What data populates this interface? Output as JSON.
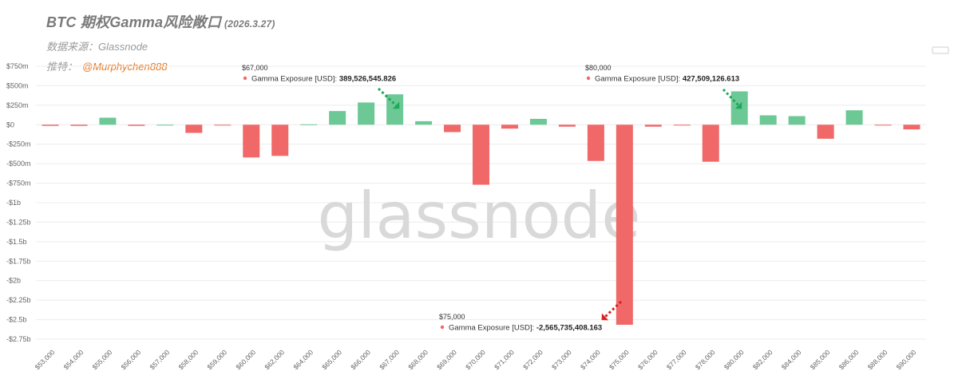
{
  "header": {
    "title": "BTC 期权Gamma风险敞口",
    "date": "(2026.3.27)",
    "source": "数据来源：Glassnode",
    "author_label": "推特：",
    "author_handle": "@Murphychen888"
  },
  "watermark": "glassnode",
  "colors": {
    "positive": "#6cc895",
    "negative": "#f06868",
    "grid": "#ececec"
  },
  "chart_data": {
    "type": "bar",
    "title": "BTC 期权Gamma风险敞口",
    "series_name": "Gamma Exposure [USD]",
    "categories": [
      "$53,000",
      "$54,000",
      "$55,000",
      "$56,000",
      "$57,000",
      "$58,000",
      "$59,000",
      "$60,000",
      "$62,000",
      "$64,000",
      "$65,000",
      "$66,000",
      "$67,000",
      "$68,000",
      "$69,000",
      "$70,000",
      "$71,000",
      "$72,000",
      "$73,000",
      "$74,000",
      "$75,000",
      "$76,000",
      "$77,000",
      "$78,000",
      "$80,000",
      "$82,000",
      "$84,000",
      "$85,000",
      "$86,000",
      "$88,000",
      "$90,000"
    ],
    "values": [
      -15000000,
      -15000000,
      90000000,
      -15000000,
      0,
      -105000000,
      -8000000,
      -420000000,
      -400000000,
      5000000,
      175000000,
      285000000,
      389526545.826,
      45000000,
      -95000000,
      -770000000,
      -50000000,
      75000000,
      -25000000,
      -465000000,
      -2565735408.163,
      -25000000,
      -5000000,
      -475000000,
      427509126.613,
      120000000,
      110000000,
      -180000000,
      185000000,
      -10000000,
      -60000000
    ],
    "ylim": [
      -2750000000,
      750000000
    ],
    "yticks": [
      750000000,
      500000000,
      250000000,
      0,
      -250000000,
      -500000000,
      -750000000,
      -1000000000,
      -1250000000,
      -1500000000,
      -1750000000,
      -2000000000,
      -2250000000,
      -2500000000,
      -2750000000
    ],
    "ytick_labels": [
      "$750m",
      "$500m",
      "$250m",
      "$0",
      "-$250m",
      "-$500m",
      "-$750m",
      "-$1b",
      "-$1.25b",
      "-$1.5b",
      "-$1.75b",
      "-$2b",
      "-$2.25b",
      "-$2.5b",
      "-$2.75b"
    ],
    "annotations": [
      {
        "category": "$67,000",
        "label": "$67,000",
        "series": "Gamma Exposure [USD]:",
        "value_text": "389,526,545.826",
        "arrow_color": "#1ea95a"
      },
      {
        "category": "$80,000",
        "label": "$80,000",
        "series": "Gamma Exposure [USD]:",
        "value_text": "427,509,126.613",
        "arrow_color": "#1ea95a"
      },
      {
        "category": "$75,000",
        "label": "$75,000",
        "series": "Gamma Exposure [USD]:",
        "value_text": "-2,565,735,408.163",
        "arrow_color": "#d9201f"
      }
    ]
  }
}
